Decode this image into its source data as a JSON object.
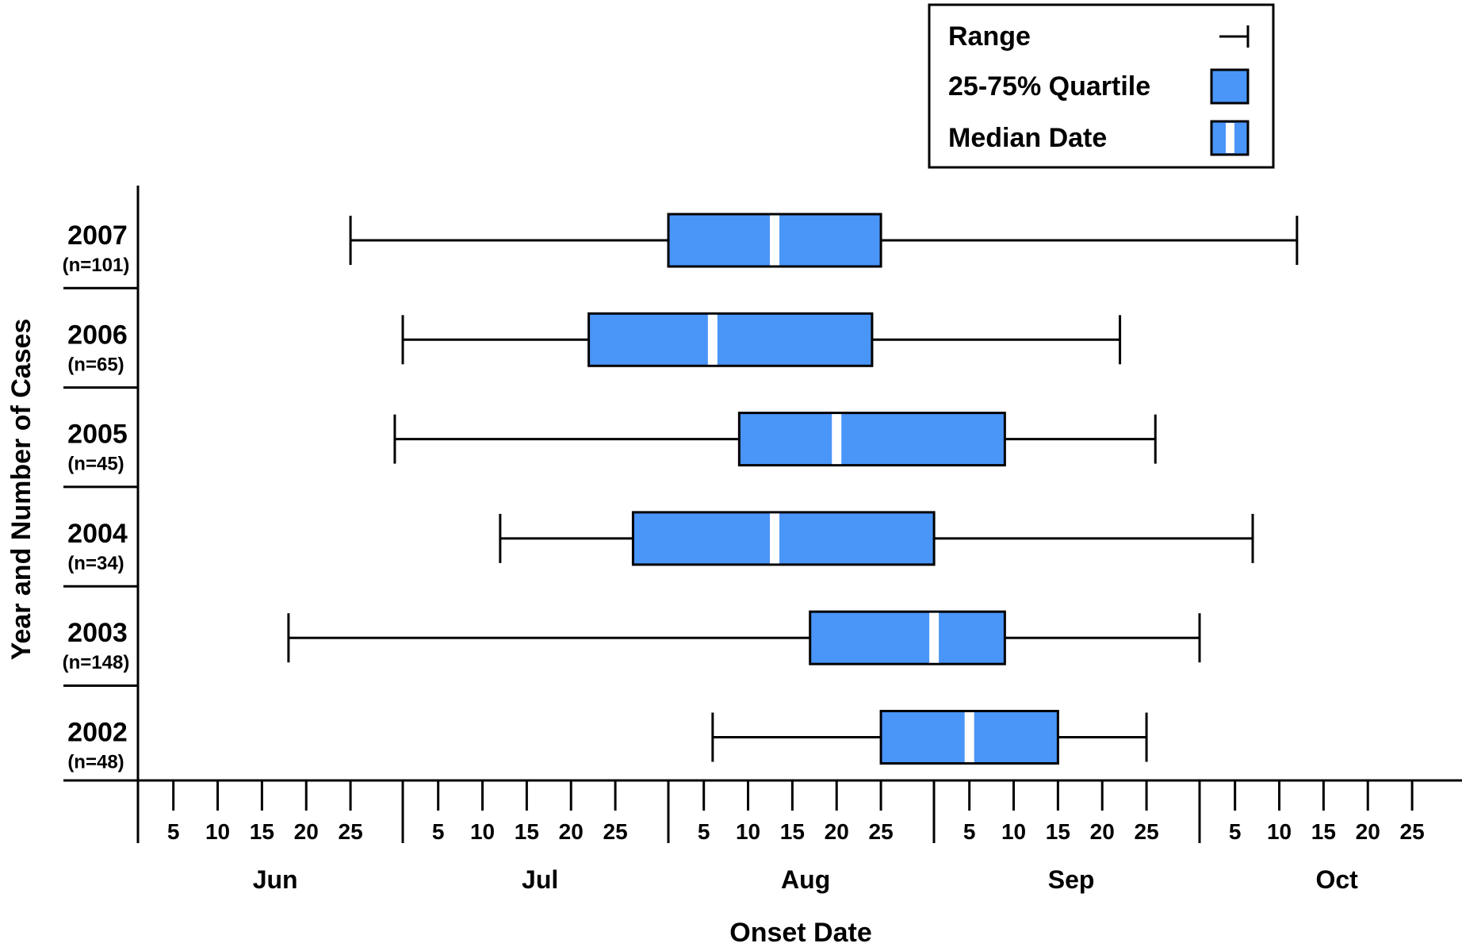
{
  "chart_data": {
    "type": "box",
    "xlabel": "Onset Date",
    "ylabel": "Year and Number of Cases",
    "box_color": "#4A95F8",
    "median_color": "#ffffff",
    "legend": {
      "position": "top-right",
      "items": [
        {
          "label": "Range",
          "symbol": "range-icon"
        },
        {
          "label": "25-75% Quartile",
          "symbol": "quartile-box-icon"
        },
        {
          "label": "Median Date",
          "symbol": "median-box-icon"
        }
      ]
    },
    "months": [
      "Jun",
      "Jul",
      "Aug",
      "Sep",
      "Oct"
    ],
    "day_ticks": [
      "5",
      "10",
      "15",
      "20",
      "25"
    ],
    "series": [
      {
        "year": "2007",
        "n_label": "(n=101)",
        "min": "Jun 25",
        "q1": "Aug 1",
        "median": "Aug 13",
        "q3": "Aug 25",
        "max": "Oct 12"
      },
      {
        "year": "2006",
        "n_label": "(n=65)",
        "min": "Jul 1",
        "q1": "Jul 22",
        "median": "Aug 6",
        "q3": "Aug 24",
        "max": "Sep 22"
      },
      {
        "year": "2005",
        "n_label": "(n=45)",
        "min": "Jun 30",
        "q1": "Aug 9",
        "median": "Aug 20",
        "q3": "Sep 9",
        "max": "Sep 26"
      },
      {
        "year": "2004",
        "n_label": "(n=34)",
        "min": "Jul 12",
        "q1": "Jul 27",
        "median": "Aug 13",
        "q3": "Aug 31",
        "max": "Oct 7"
      },
      {
        "year": "2003",
        "n_label": "(n=148)",
        "min": "Jun 18",
        "q1": "Aug 17",
        "median": "Aug 31",
        "q3": "Sep 9",
        "max": "Oct 1"
      },
      {
        "year": "2002",
        "n_label": "(n=48)",
        "min": "Aug 6",
        "q1": "Aug 25",
        "median": "Sep 5",
        "q3": "Sep 15",
        "max": "Sep 25"
      }
    ]
  }
}
